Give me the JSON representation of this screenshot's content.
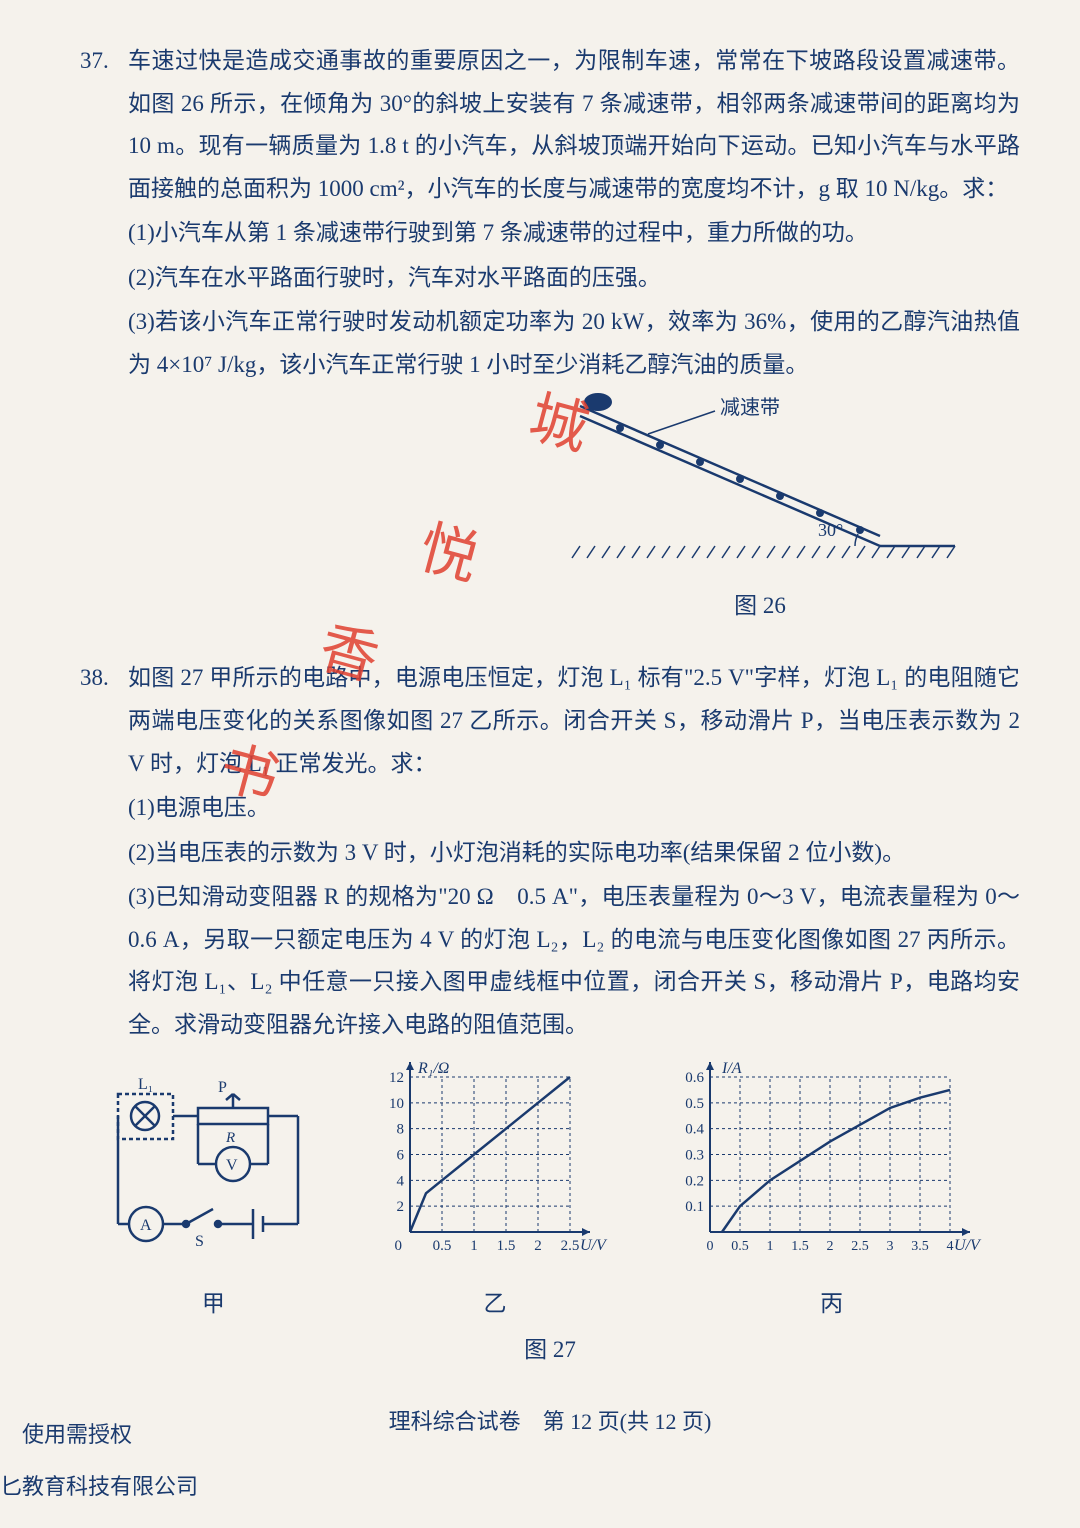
{
  "q37": {
    "number": "37.",
    "main": "车速过快是造成交通事故的重要原因之一，为限制车速，常常在下坡路段设置减速带。如图 26 所示，在倾角为 30°的斜坡上安装有 7 条减速带，相邻两条减速带间的距离均为 10 m。现有一辆质量为 1.8 t 的小汽车，从斜坡顶端开始向下运动。已知小汽车与水平路面接触的总面积为 1000 cm²，小汽车的长度与减速带的宽度均不计，g 取 10 N/kg。求：",
    "sub1": "(1)小汽车从第 1 条减速带行驶到第 7 条减速带的过程中，重力所做的功。",
    "sub2": "(2)汽车在水平路面行驶时，汽车对水平路面的压强。",
    "sub3": "(3)若该小汽车正常行驶时发动机额定功率为 20 kW，效率为 36%，使用的乙醇汽油热值为 4×10⁷ J/kg，该小汽车正常行驶 1 小时至少消耗乙醇汽油的质量。",
    "fig_label_speed": "减速带",
    "fig_angle": "30°",
    "fig_caption": "图 26"
  },
  "q38": {
    "number": "38.",
    "main": "如图 27 甲所示的电路中，电源电压恒定，灯泡 L₁ 标有\"2.5 V\"字样，灯泡 L₁ 的电阻随它两端电压变化的关系图像如图 27 乙所示。闭合开关 S，移动滑片 P，当电压表示数为 2 V 时，灯泡 L₁ 正常发光。求：",
    "sub1": "(1)电源电压。",
    "sub2": "(2)当电压表的示数为 3 V 时，小灯泡消耗的实际电功率(结果保留 2 位小数)。",
    "sub3": "(3)已知滑动变阻器 R 的规格为\"20 Ω　0.5 A\"，电压表量程为 0～3 V，电流表量程为 0～0.6 A，另取一只额定电压为 4 V 的灯泡 L₂，L₂ 的电流与电压变化图像如图 27 丙所示。将灯泡 L₁、L₂ 中任意一只接入图甲虚线框中位置，闭合开关 S，移动滑片 P，电路均安全。求滑动变阻器允许接入电路的阻值范围。",
    "fig_jia": "甲",
    "fig_yi": "乙",
    "fig_bing": "丙",
    "fig_caption": "图 27",
    "labels_jia": {
      "L1": "L₁",
      "P": "P",
      "R": "R",
      "V": "V",
      "A": "A",
      "S": "S"
    },
    "chart_yi": {
      "ylabel": "R₁/Ω",
      "xlabel": "U/V",
      "yticks": [
        "2",
        "4",
        "6",
        "8",
        "10",
        "12"
      ],
      "xticks": [
        "0.5",
        "1",
        "1.5",
        "2",
        "2.5"
      ],
      "points": [
        [
          0,
          0
        ],
        [
          0.25,
          3
        ],
        [
          0.5,
          4
        ],
        [
          1,
          6
        ],
        [
          1.5,
          8
        ],
        [
          2,
          10
        ],
        [
          2.5,
          12
        ]
      ],
      "color": "#1a3a6e",
      "grid_color": "#1a3a6e"
    },
    "chart_bing": {
      "ylabel": "I/A",
      "xlabel": "U/V",
      "yticks": [
        "0.1",
        "0.2",
        "0.3",
        "0.4",
        "0.5",
        "0.6"
      ],
      "xticks": [
        "0",
        "0.5",
        "1",
        "1.5",
        "2",
        "2.5",
        "3",
        "3.5",
        "4"
      ],
      "points": [
        [
          0.2,
          0
        ],
        [
          0.5,
          0.1
        ],
        [
          1,
          0.2
        ],
        [
          2,
          0.35
        ],
        [
          3,
          0.48
        ],
        [
          3.5,
          0.52
        ],
        [
          4,
          0.55
        ]
      ],
      "color": "#1a3a6e",
      "grid_color": "#1a3a6e"
    }
  },
  "footer": "理科综合试卷　第 12 页(共 12 页)",
  "bottom1": "使用需授权",
  "bottom2": "匕教育科技有限公司",
  "watermark": {
    "c1": "城",
    "c2": "悦",
    "c3": "香",
    "c4": "书"
  }
}
